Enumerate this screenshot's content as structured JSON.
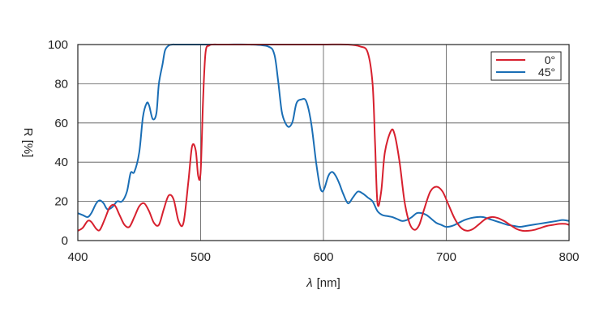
{
  "chart_data": {
    "type": "line",
    "xlabel": {
      "var": "λ",
      "unit": "[nm]"
    },
    "ylabel": "R [%]",
    "xlim": [
      400,
      800
    ],
    "ylim": [
      0,
      100
    ],
    "x_ticks": [
      "400",
      "500",
      "600",
      "700",
      "800"
    ],
    "y_ticks": [
      "0",
      "20",
      "40",
      "60",
      "80",
      "100"
    ],
    "grid": true,
    "legend_position": "top-right",
    "series": [
      {
        "name": "0°",
        "color": "#d7202e",
        "x": [
          400,
          404,
          408,
          411,
          415,
          418,
          422,
          426,
          430,
          434,
          438,
          442,
          446,
          450,
          454,
          458,
          462,
          466,
          470,
          474,
          478,
          482,
          486,
          490,
          493,
          496,
          498,
          500,
          502,
          504,
          507,
          510,
          515,
          520,
          540,
          560,
          580,
          600,
          620,
          630,
          636,
          640,
          642,
          644,
          647,
          650,
          655,
          658,
          662,
          666,
          670,
          674,
          678,
          682,
          687,
          692,
          697,
          702,
          707,
          712,
          717,
          722,
          727,
          732,
          737,
          742,
          747,
          752,
          757,
          762,
          767,
          772,
          777,
          782,
          787,
          792,
          797,
          800
        ],
        "y": [
          5,
          6.5,
          10,
          9.5,
          6,
          5.5,
          11,
          17,
          18,
          13,
          8,
          7,
          12,
          17.5,
          19,
          15,
          9,
          8,
          16,
          23,
          21,
          10,
          9,
          30,
          48,
          46,
          33,
          35,
          72,
          96,
          99.5,
          100,
          100,
          100,
          100,
          100,
          100,
          100,
          100,
          99,
          96,
          80,
          50,
          19,
          25,
          45,
          56,
          54,
          40,
          20,
          9,
          5.5,
          8,
          16,
          25,
          27.5,
          25,
          18,
          11,
          6.5,
          5,
          6,
          8.5,
          11,
          12,
          11.5,
          10,
          8,
          6,
          5,
          5,
          5.5,
          6.5,
          7.5,
          8,
          8.5,
          8.5,
          8
        ]
      },
      {
        "name": "45°",
        "color": "#1a6eb5",
        "x": [
          400,
          404,
          408,
          411,
          415,
          418,
          421,
          424,
          428,
          432,
          436,
          440,
          443,
          446,
          450,
          453,
          456,
          458,
          461,
          464,
          466,
          469,
          471,
          474,
          477,
          480,
          485,
          490,
          500,
          520,
          540,
          555,
          560,
          563,
          566,
          569,
          572,
          575,
          578,
          582,
          586,
          590,
          594,
          597,
          599,
          601,
          604,
          607,
          610,
          613,
          616,
          620,
          624,
          628,
          632,
          636,
          640,
          644,
          648,
          652,
          656,
          660,
          664,
          668,
          672,
          676,
          680,
          684,
          688,
          692,
          696,
          700,
          705,
          710,
          715,
          720,
          725,
          730,
          735,
          740,
          745,
          750,
          755,
          760,
          765,
          770,
          775,
          780,
          785,
          790,
          795,
          800
        ],
        "y": [
          14,
          13,
          12,
          14,
          19,
          20.5,
          19,
          16,
          17,
          20,
          20,
          25,
          34.5,
          35,
          45,
          63,
          70,
          69,
          62,
          65,
          80,
          90,
          97,
          99.5,
          100,
          100,
          100,
          100,
          100,
          100,
          100,
          99,
          95,
          82,
          66,
          60,
          58,
          61,
          70,
          72,
          71,
          60,
          40,
          28,
          25,
          27,
          33,
          35,
          33,
          29,
          24,
          19,
          22,
          25,
          24,
          22,
          20,
          15,
          13,
          12.5,
          12,
          11,
          10,
          10.5,
          12,
          14,
          14,
          13,
          11,
          9,
          8,
          7,
          7.5,
          9,
          10.5,
          11.5,
          12,
          12,
          11,
          10,
          9,
          8,
          7.5,
          7,
          7.5,
          8,
          8.5,
          9,
          9.5,
          10,
          10.5,
          10
        ]
      }
    ]
  }
}
